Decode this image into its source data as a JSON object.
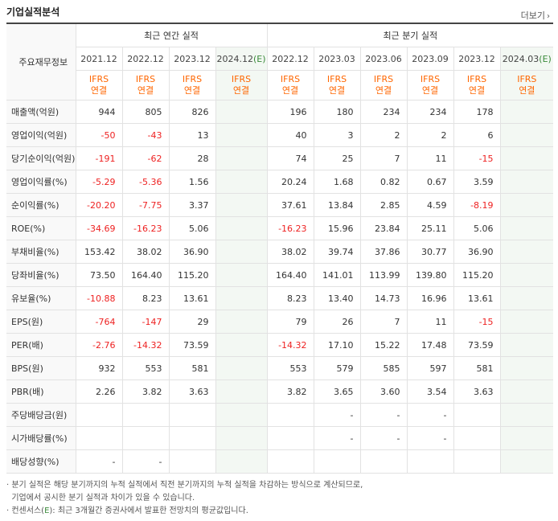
{
  "header": {
    "title": "기업실적분석",
    "more_label": "더보기",
    "more_arrow": "›"
  },
  "table": {
    "corner_label": "주요재무정보",
    "group_annual": "최근 연간 실적",
    "group_quarter": "최근 분기 실적",
    "periods_annual": [
      "2021.12",
      "2022.12",
      "2023.12",
      "2024.12"
    ],
    "periods_quarter": [
      "2022.12",
      "2023.03",
      "2023.06",
      "2023.09",
      "2023.12",
      "2024.03"
    ],
    "estimate_mark": "(E)",
    "ifrs_label": "IFRS",
    "ifrs_sub": "연결",
    "rows": [
      {
        "label": "매출액(억원)",
        "annual": [
          "944",
          "805",
          "826",
          ""
        ],
        "quarter": [
          "196",
          "180",
          "234",
          "234",
          "178",
          ""
        ]
      },
      {
        "label": "영업이익(억원)",
        "annual": [
          "-50",
          "-43",
          "13",
          ""
        ],
        "quarter": [
          "40",
          "3",
          "2",
          "2",
          "6",
          ""
        ]
      },
      {
        "label": "당기순이익(억원)",
        "annual": [
          "-191",
          "-62",
          "28",
          ""
        ],
        "quarter": [
          "74",
          "25",
          "7",
          "11",
          "-15",
          ""
        ]
      },
      {
        "label": "영업이익률(%)",
        "annual": [
          "-5.29",
          "-5.36",
          "1.56",
          ""
        ],
        "quarter": [
          "20.24",
          "1.68",
          "0.82",
          "0.67",
          "3.59",
          ""
        ]
      },
      {
        "label": "순이익률(%)",
        "annual": [
          "-20.20",
          "-7.75",
          "3.37",
          ""
        ],
        "quarter": [
          "37.61",
          "13.84",
          "2.85",
          "4.59",
          "-8.19",
          ""
        ]
      },
      {
        "label": "ROE(%)",
        "annual": [
          "-34.69",
          "-16.23",
          "5.06",
          ""
        ],
        "quarter": [
          "-16.23",
          "15.96",
          "23.84",
          "25.11",
          "5.06",
          ""
        ]
      },
      {
        "label": "부채비율(%)",
        "annual": [
          "153.42",
          "38.02",
          "36.90",
          ""
        ],
        "quarter": [
          "38.02",
          "39.74",
          "37.86",
          "30.77",
          "36.90",
          ""
        ]
      },
      {
        "label": "당좌비율(%)",
        "annual": [
          "73.50",
          "164.40",
          "115.20",
          ""
        ],
        "quarter": [
          "164.40",
          "141.01",
          "113.99",
          "139.80",
          "115.20",
          ""
        ]
      },
      {
        "label": "유보율(%)",
        "annual": [
          "-10.88",
          "8.23",
          "13.61",
          ""
        ],
        "quarter": [
          "8.23",
          "13.40",
          "14.73",
          "16.96",
          "13.61",
          ""
        ]
      },
      {
        "label": "EPS(원)",
        "annual": [
          "-764",
          "-147",
          "29",
          ""
        ],
        "quarter": [
          "79",
          "26",
          "7",
          "11",
          "-15",
          ""
        ]
      },
      {
        "label": "PER(배)",
        "annual": [
          "-2.76",
          "-14.32",
          "73.59",
          ""
        ],
        "quarter": [
          "-14.32",
          "17.10",
          "15.22",
          "17.48",
          "73.59",
          ""
        ]
      },
      {
        "label": "BPS(원)",
        "annual": [
          "932",
          "553",
          "581",
          ""
        ],
        "quarter": [
          "553",
          "579",
          "585",
          "597",
          "581",
          ""
        ]
      },
      {
        "label": "PBR(배)",
        "annual": [
          "2.26",
          "3.82",
          "3.63",
          ""
        ],
        "quarter": [
          "3.82",
          "3.65",
          "3.60",
          "3.54",
          "3.63",
          ""
        ]
      },
      {
        "label": "주당배당금(원)",
        "annual": [
          "",
          "",
          "",
          ""
        ],
        "quarter": [
          "",
          "-",
          "-",
          "-",
          "",
          ""
        ]
      },
      {
        "label": "시가배당률(%)",
        "annual": [
          "",
          "",
          "",
          ""
        ],
        "quarter": [
          "",
          "-",
          "-",
          "-",
          "",
          ""
        ]
      },
      {
        "label": "배당성향(%)",
        "annual": [
          "-",
          "-",
          "",
          ""
        ],
        "quarter": [
          "",
          "",
          "",
          "",
          "",
          ""
        ]
      }
    ]
  },
  "notes": {
    "line1": "· 분기 실적은 해당 분기까지의 누적 실적에서 직전 분기까지의 누적 실적을 차감하는 방식으로 계산되므로,",
    "line2": "  기업에서 공시한 분기 실적과 차이가 있을 수 있습니다.",
    "line3_a": "· 컨센서스(",
    "line3_e": "E",
    "line3_b": "): 최근 3개월간 증권사에서 발표한 전망치의 평균값입니다."
  },
  "colors": {
    "negative": "#ee2222",
    "ifrs": "#ff6600",
    "estimate_bg": "#f3f8f3"
  }
}
